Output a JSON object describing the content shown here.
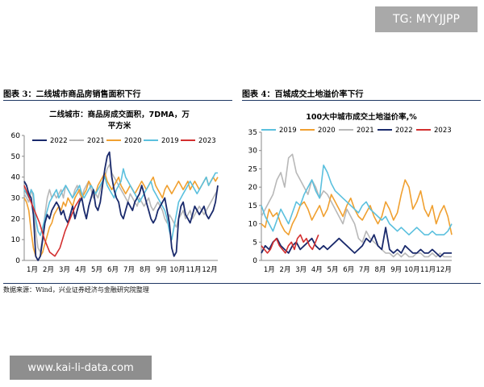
{
  "watermark_top": "TG: MYYJJPP",
  "watermark_bottom": "www.kai-li-data.com",
  "source_note": "数据来源：Wind，兴业证券经济与金融研究院整理",
  "panels": {
    "left_title": "图表 3：二线城市商品房销售面积下行",
    "right_title": "图表 4：百城成交土地溢价率下行"
  },
  "colors": {
    "2019": "#5bc0de",
    "2020": "#f0a030",
    "2021": "#b8b8b8",
    "2022": "#1a2a6c",
    "2023": "#d32f2f"
  },
  "chart_data": [
    {
      "type": "line",
      "title_line1": "二线城市：商品房成交面积，7DMA，万",
      "title_line2": "平方米",
      "x_ticks": [
        "1月",
        "2月",
        "3月",
        "4月",
        "5月",
        "6月",
        "7月",
        "8月",
        "9月",
        "10月",
        "11月",
        "12月"
      ],
      "y_ticks": [
        "0",
        "10",
        "20",
        "30",
        "40",
        "50",
        "60"
      ],
      "ylim": [
        0,
        60
      ],
      "legend": [
        "2022",
        "2021",
        "2020",
        "2019",
        "2023"
      ],
      "legend_position": "top",
      "series": [
        {
          "name": "2022",
          "values": [
            38,
            36,
            32,
            30,
            22,
            2,
            0,
            2,
            10,
            18,
            22,
            20,
            24,
            26,
            28,
            26,
            22,
            24,
            20,
            18,
            22,
            26,
            20,
            24,
            28,
            30,
            24,
            20,
            26,
            30,
            34,
            26,
            24,
            28,
            36,
            44,
            50,
            52,
            40,
            34,
            30,
            28,
            22,
            20,
            24,
            28,
            26,
            24,
            28,
            30,
            32,
            36,
            32,
            28,
            24,
            20,
            18,
            20,
            24,
            26,
            28,
            30,
            24,
            18,
            6,
            2,
            4,
            20,
            26,
            28,
            22,
            20,
            18,
            22,
            26,
            24,
            22,
            24,
            26,
            22,
            20,
            22,
            24,
            28,
            36
          ]
        },
        {
          "name": "2021",
          "values": [
            32,
            30,
            28,
            34,
            30,
            14,
            6,
            4,
            12,
            22,
            30,
            34,
            30,
            32,
            30,
            32,
            34,
            30,
            36,
            34,
            32,
            30,
            34,
            36,
            32,
            30,
            34,
            36,
            38,
            34,
            30,
            32,
            30,
            34,
            38,
            40,
            44,
            46,
            42,
            40,
            38,
            36,
            34,
            32,
            30,
            28,
            32,
            30,
            28,
            26,
            30,
            28,
            26,
            28,
            30,
            26,
            24,
            26,
            28,
            26,
            24,
            20,
            18,
            22,
            20,
            18,
            16,
            20,
            22,
            24,
            20,
            22,
            24,
            20,
            22,
            24,
            26,
            24,
            22,
            24,
            26,
            28,
            30,
            32,
            34
          ]
        },
        {
          "name": "2020",
          "values": [
            30,
            28,
            24,
            14,
            6,
            2,
            0,
            2,
            4,
            8,
            12,
            16,
            18,
            22,
            24,
            26,
            24,
            28,
            26,
            30,
            28,
            26,
            30,
            32,
            34,
            30,
            32,
            34,
            38,
            36,
            34,
            32,
            36,
            38,
            40,
            42,
            38,
            36,
            34,
            36,
            38,
            40,
            36,
            34,
            32,
            34,
            36,
            34,
            32,
            34,
            36,
            38,
            36,
            34,
            36,
            38,
            40,
            36,
            34,
            32,
            30,
            34,
            36,
            34,
            32,
            34,
            36,
            38,
            36,
            34,
            36,
            38,
            34,
            36,
            38,
            36,
            34,
            36,
            38,
            40,
            36,
            38,
            40,
            38,
            40
          ]
        },
        {
          "name": "2019",
          "values": [
            34,
            32,
            30,
            34,
            32,
            20,
            14,
            12,
            16,
            20,
            24,
            28,
            30,
            32,
            34,
            30,
            32,
            34,
            36,
            34,
            32,
            30,
            32,
            34,
            36,
            32,
            30,
            32,
            34,
            36,
            34,
            32,
            34,
            36,
            38,
            40,
            36,
            34,
            32,
            30,
            34,
            36,
            38,
            44,
            40,
            38,
            36,
            34,
            32,
            30,
            28,
            30,
            32,
            34,
            36,
            38,
            34,
            32,
            30,
            28,
            26,
            24,
            20,
            14,
            10,
            16,
            22,
            28,
            30,
            32,
            34,
            36,
            38,
            36,
            34,
            32,
            34,
            36,
            38,
            40,
            36,
            38,
            40,
            42,
            42
          ]
        },
        {
          "name": "2023",
          "values": [
            36,
            30,
            24,
            18,
            10,
            4,
            2,
            6,
            14,
            20,
            26,
            30
          ]
        }
      ]
    },
    {
      "type": "line",
      "title": "100大中城市成交土地溢价率,%",
      "x_ticks": [
        "1月",
        "2月",
        "3月",
        "4月",
        "5月",
        "6月",
        "7月",
        "8月",
        "9月",
        "10月",
        "11月",
        "12月"
      ],
      "y_ticks": [
        "0",
        "5",
        "10",
        "15",
        "20",
        "25",
        "30",
        "35"
      ],
      "ylim": [
        0,
        35
      ],
      "legend": [
        "2019",
        "2020",
        "2021",
        "2022",
        "2023"
      ],
      "legend_position": "top",
      "series": [
        {
          "name": "2019",
          "values": [
            15,
            12,
            10,
            8,
            11,
            14,
            12,
            10,
            13,
            16,
            15,
            18,
            20,
            22,
            19,
            17,
            26,
            24,
            21,
            19,
            18,
            17,
            16,
            15,
            14,
            13,
            15,
            16,
            14,
            13,
            12,
            11,
            12,
            10,
            9,
            8,
            9,
            8,
            7,
            8,
            9,
            8,
            7,
            7,
            8,
            7,
            7,
            7,
            8,
            10
          ]
        },
        {
          "name": "2020",
          "values": [
            10,
            9,
            14,
            12,
            13,
            10,
            8,
            7,
            10,
            12,
            15,
            16,
            14,
            11,
            13,
            15,
            12,
            14,
            18,
            16,
            14,
            12,
            15,
            17,
            14,
            12,
            11,
            13,
            15,
            12,
            10,
            12,
            16,
            14,
            11,
            13,
            18,
            22,
            20,
            14,
            16,
            19,
            14,
            12,
            15,
            10,
            13,
            15,
            12,
            7
          ]
        },
        {
          "name": "2021",
          "values": [
            12,
            14,
            16,
            18,
            22,
            24,
            20,
            28,
            29,
            24,
            22,
            20,
            18,
            22,
            20,
            17,
            19,
            18,
            16,
            14,
            12,
            10,
            14,
            12,
            10,
            6,
            5,
            8,
            6,
            5,
            4,
            3,
            2,
            2,
            1,
            2,
            1,
            2,
            1,
            1,
            2,
            2,
            1,
            1,
            2,
            1,
            2,
            1,
            1,
            1
          ]
        },
        {
          "name": "2022",
          "values": [
            2,
            4,
            3,
            5,
            6,
            4,
            3,
            2,
            4,
            5,
            3,
            4,
            5,
            6,
            4,
            3,
            4,
            3,
            4,
            5,
            6,
            5,
            4,
            3,
            2,
            3,
            4,
            6,
            5,
            7,
            4,
            3,
            9,
            3,
            2,
            3,
            2,
            4,
            3,
            2,
            2,
            3,
            2,
            2,
            3,
            2,
            1,
            2,
            2,
            2
          ]
        },
        {
          "name": "2023",
          "values": [
            4,
            3,
            2,
            3,
            5,
            6,
            4,
            3,
            2,
            4,
            5,
            3,
            6,
            7,
            5,
            6,
            4,
            3,
            5,
            7
          ]
        }
      ]
    }
  ]
}
